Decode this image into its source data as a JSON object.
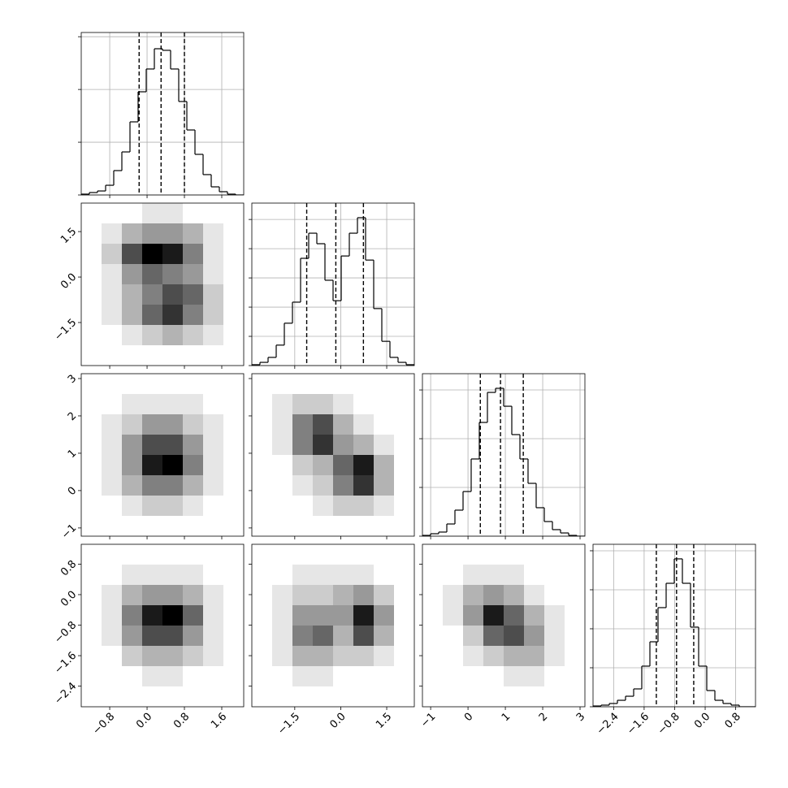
{
  "chart_data": [
    {
      "type": "histogram",
      "color": "#000000",
      "grid": true,
      "xlim": [
        -1.41,
        2.07
      ],
      "xticks": [
        {
          "value": -0.8,
          "label": "−0.8"
        },
        {
          "value": 0,
          "label": "0.0"
        },
        0.8,
        1.6
      ],
      "ylim": [
        0,
        1540
      ],
      "yticks": [
        0,
        500,
        1000,
        1500
      ],
      "bins": [
        -1.41,
        -1.236,
        -1.062,
        -0.888,
        -0.714,
        -0.54,
        -0.366,
        -0.192,
        -0.018,
        0.156,
        0.33,
        0.504,
        0.678,
        0.852,
        1.026,
        1.2,
        1.374,
        1.548,
        1.722,
        1.896,
        2.07
      ],
      "counts": [
        8,
        23,
        38,
        92,
        231,
        408,
        693,
        978,
        1194,
        1386,
        1371,
        1194,
        886,
        616,
        385,
        193,
        77,
        31,
        8,
        0
      ],
      "quantiles": [
        -0.17,
        0.3,
        0.8
      ]
    },
    {
      "type": "hist2d",
      "grid": true,
      "xlim": [
        -1.41,
        2.07
      ],
      "xticks": [
        {
          "value": -0.8,
          "label": "−0.8"
        },
        {
          "value": 0,
          "label": "0.0"
        },
        0.8,
        1.6
      ],
      "ylim": [
        -2.92,
        2.44
      ],
      "yticks": [
        1.5,
        {
          "value": 0,
          "label": "0.0"
        },
        {
          "value": -1.5,
          "label": "−1.5"
        }
      ],
      "density": [
        [
          0,
          0,
          0,
          1,
          1,
          0,
          0,
          0
        ],
        [
          0,
          1,
          3,
          4,
          4,
          3,
          1,
          0
        ],
        [
          0,
          2,
          7,
          10,
          9,
          5,
          1,
          0
        ],
        [
          0,
          1,
          4,
          6,
          5,
          4,
          1,
          0
        ],
        [
          0,
          1,
          3,
          5,
          7,
          6,
          2,
          0
        ],
        [
          0,
          1,
          3,
          6,
          8,
          5,
          2,
          0
        ],
        [
          0,
          0,
          1,
          2,
          3,
          2,
          1,
          0
        ],
        [
          0,
          0,
          0,
          0,
          0,
          0,
          0,
          0
        ]
      ]
    },
    {
      "type": "histogram",
      "color": "#000000",
      "grid": true,
      "xlim": [
        -2.9,
        2.4
      ],
      "xticks": [
        {
          "value": -1.5,
          "label": "−1.5"
        },
        {
          "value": 0,
          "label": "0.0"
        },
        1.5
      ],
      "ylim": [
        0,
        556
      ],
      "yticks": [
        0,
        100,
        200,
        300,
        400,
        500
      ],
      "bins": [
        -2.9,
        -2.635,
        -2.37,
        -2.105,
        -1.84,
        -1.575,
        -1.31,
        -1.045,
        -0.78,
        -0.515,
        -0.25,
        0.015,
        0.28,
        0.545,
        0.81,
        1.075,
        1.34,
        1.605,
        1.87,
        2.135,
        2.4
      ],
      "counts": [
        3,
        11,
        28,
        70,
        145,
        217,
        367,
        453,
        417,
        292,
        222,
        375,
        453,
        506,
        361,
        195,
        83,
        28,
        11,
        3
      ],
      "quantiles": [
        -1.11,
        -0.16,
        0.74
      ]
    },
    {
      "type": "hist2d",
      "grid": true,
      "xlim": [
        -1.41,
        2.07
      ],
      "xticks": [
        {
          "value": -0.8,
          "label": "−0.8"
        },
        {
          "value": 0,
          "label": "0.0"
        },
        0.8,
        1.6
      ],
      "ylim": [
        -1.22,
        3.13
      ],
      "yticks": [
        3,
        2,
        1,
        0,
        {
          "value": -1,
          "label": "−1"
        }
      ],
      "density": [
        [
          0,
          0,
          0,
          0,
          0,
          0,
          0,
          0
        ],
        [
          0,
          0,
          1,
          1,
          1,
          1,
          0,
          0
        ],
        [
          0,
          1,
          2,
          4,
          4,
          2,
          1,
          0
        ],
        [
          0,
          1,
          4,
          7,
          7,
          4,
          1,
          0
        ],
        [
          0,
          1,
          4,
          9,
          10,
          5,
          1,
          0
        ],
        [
          0,
          1,
          3,
          5,
          5,
          3,
          1,
          0
        ],
        [
          0,
          0,
          1,
          2,
          2,
          1,
          0,
          0
        ],
        [
          0,
          0,
          0,
          0,
          0,
          0,
          0,
          0
        ]
      ]
    },
    {
      "type": "hist2d",
      "grid": true,
      "xlim": [
        -2.9,
        2.4
      ],
      "xticks": [
        {
          "value": -1.5,
          "label": "−1.5"
        },
        {
          "value": 0,
          "label": "0.0"
        },
        1.5
      ],
      "ylim": [
        -1.22,
        3.13
      ],
      "yticks": [
        3,
        2,
        1,
        0,
        {
          "value": -1,
          "label": "−1"
        }
      ],
      "density": [
        [
          0,
          0,
          0,
          0,
          0,
          0,
          0,
          0
        ],
        [
          0,
          1,
          2,
          2,
          1,
          0,
          0,
          0
        ],
        [
          0,
          1,
          5,
          7,
          3,
          1,
          0,
          0
        ],
        [
          0,
          1,
          5,
          8,
          4,
          3,
          1,
          0
        ],
        [
          0,
          0,
          2,
          3,
          6,
          9,
          3,
          0
        ],
        [
          0,
          0,
          1,
          2,
          5,
          8,
          3,
          0
        ],
        [
          0,
          0,
          0,
          1,
          2,
          2,
          1,
          0
        ],
        [
          0,
          0,
          0,
          0,
          0,
          0,
          0,
          0
        ]
      ]
    },
    {
      "type": "histogram",
      "color": "#000000",
      "grid": true,
      "xlim": [
        -1.22,
        3.13
      ],
      "xticks": [
        {
          "value": -1,
          "label": "−1"
        },
        0,
        1,
        2,
        3
      ],
      "ylim": [
        0,
        1667
      ],
      "yticks": [
        0,
        500,
        1000,
        1500
      ],
      "bins": [
        -1.22,
        -1.0025,
        -0.785,
        -0.5675,
        -0.35,
        -0.1325,
        0.085,
        0.3025,
        0.52,
        0.7375,
        0.955,
        1.1725,
        1.39,
        1.6075,
        1.825,
        2.0425,
        2.26,
        2.4775,
        2.695,
        2.9125,
        3.13
      ],
      "counts": [
        8,
        25,
        42,
        125,
        267,
        458,
        792,
        1167,
        1475,
        1517,
        1333,
        1042,
        792,
        542,
        292,
        150,
        67,
        33,
        8,
        0
      ],
      "quantiles": [
        0.33,
        0.87,
        1.48
      ]
    },
    {
      "type": "hist2d",
      "grid": true,
      "xlim": [
        -1.41,
        2.07
      ],
      "xticks": [
        {
          "value": -0.8,
          "label": "−0.8"
        },
        {
          "value": 0,
          "label": "0.0"
        },
        0.8,
        1.6
      ],
      "ylim": [
        -2.94,
        1.32
      ],
      "yticks": [
        0.8,
        {
          "value": 0,
          "label": "0.0"
        },
        {
          "value": -0.8,
          "label": "−0.8"
        },
        {
          "value": -1.6,
          "label": "−1.6"
        },
        {
          "value": -2.4,
          "label": "−2.4"
        }
      ],
      "density": [
        [
          0,
          0,
          0,
          0,
          0,
          0,
          0,
          0
        ],
        [
          0,
          0,
          1,
          1,
          1,
          1,
          0,
          0
        ],
        [
          0,
          1,
          3,
          4,
          4,
          3,
          1,
          0
        ],
        [
          0,
          1,
          5,
          9,
          10,
          6,
          1,
          0
        ],
        [
          0,
          1,
          4,
          7,
          7,
          4,
          1,
          0
        ],
        [
          0,
          0,
          2,
          3,
          3,
          2,
          1,
          0
        ],
        [
          0,
          0,
          0,
          1,
          1,
          0,
          0,
          0
        ],
        [
          0,
          0,
          0,
          0,
          0,
          0,
          0,
          0
        ]
      ]
    },
    {
      "type": "hist2d",
      "grid": true,
      "xlim": [
        -2.9,
        2.4
      ],
      "xticks": [
        {
          "value": -1.5,
          "label": "−1.5"
        },
        {
          "value": 0,
          "label": "0.0"
        },
        1.5
      ],
      "ylim": [
        -2.94,
        1.32
      ],
      "yticks": [
        0.8,
        {
          "value": 0,
          "label": "0.0"
        },
        {
          "value": -0.8,
          "label": "−0.8"
        },
        {
          "value": -1.6,
          "label": "−1.6"
        },
        {
          "value": -2.4,
          "label": "−2.4"
        }
      ],
      "density": [
        [
          0,
          0,
          0,
          0,
          0,
          0,
          0,
          0
        ],
        [
          0,
          0,
          1,
          1,
          1,
          1,
          0,
          0
        ],
        [
          0,
          1,
          2,
          2,
          3,
          4,
          2,
          0
        ],
        [
          0,
          1,
          4,
          4,
          4,
          9,
          4,
          0
        ],
        [
          0,
          1,
          5,
          6,
          3,
          7,
          3,
          0
        ],
        [
          0,
          1,
          3,
          3,
          2,
          2,
          1,
          0
        ],
        [
          0,
          0,
          1,
          1,
          0,
          0,
          0,
          0
        ],
        [
          0,
          0,
          0,
          0,
          0,
          0,
          0,
          0
        ]
      ]
    },
    {
      "type": "hist2d",
      "grid": true,
      "xlim": [
        -1.22,
        3.13
      ],
      "xticks": [
        {
          "value": -1,
          "label": "−1"
        },
        0,
        1,
        2,
        3
      ],
      "ylim": [
        -2.94,
        1.32
      ],
      "yticks": [
        0.8,
        {
          "value": 0,
          "label": "0.0"
        },
        {
          "value": -0.8,
          "label": "−0.8"
        },
        {
          "value": -1.6,
          "label": "−1.6"
        },
        {
          "value": -2.4,
          "label": "−2.4"
        }
      ],
      "density": [
        [
          0,
          0,
          0,
          0,
          0,
          0,
          0,
          0
        ],
        [
          0,
          0,
          1,
          1,
          1,
          0,
          0,
          0
        ],
        [
          0,
          1,
          3,
          4,
          3,
          1,
          0,
          0
        ],
        [
          0,
          1,
          4,
          9,
          6,
          3,
          1,
          0
        ],
        [
          0,
          0,
          2,
          6,
          7,
          4,
          1,
          0
        ],
        [
          0,
          0,
          1,
          2,
          3,
          3,
          1,
          0
        ],
        [
          0,
          0,
          0,
          0,
          1,
          1,
          0,
          0
        ],
        [
          0,
          0,
          0,
          0,
          0,
          0,
          0,
          0
        ]
      ]
    },
    {
      "type": "histogram",
      "color": "#000000",
      "grid": true,
      "xlim": [
        -2.94,
        1.32
      ],
      "xticks": [
        {
          "value": -2.4,
          "label": "−2.4"
        },
        {
          "value": -1.6,
          "label": "−1.6"
        },
        {
          "value": -0.8,
          "label": "−0.8"
        },
        {
          "value": 0,
          "label": "0.0"
        },
        0.8
      ],
      "ylim": [
        0,
        2083
      ],
      "yticks": [
        0,
        500,
        1000,
        1500,
        2000
      ],
      "bins": [
        -2.94,
        -2.727,
        -2.514,
        -2.301,
        -2.088,
        -1.875,
        -1.662,
        -1.449,
        -1.236,
        -1.023,
        -0.81,
        -0.597,
        -0.384,
        -0.171,
        0.042,
        0.255,
        0.468,
        0.681,
        0.894,
        1.107,
        1.32
      ],
      "counts": [
        10,
        21,
        42,
        83,
        135,
        229,
        521,
        833,
        1271,
        1583,
        1896,
        1583,
        1021,
        521,
        208,
        83,
        42,
        21,
        0,
        0
      ],
      "quantiles": [
        -1.28,
        -0.75,
        -0.3
      ]
    }
  ]
}
